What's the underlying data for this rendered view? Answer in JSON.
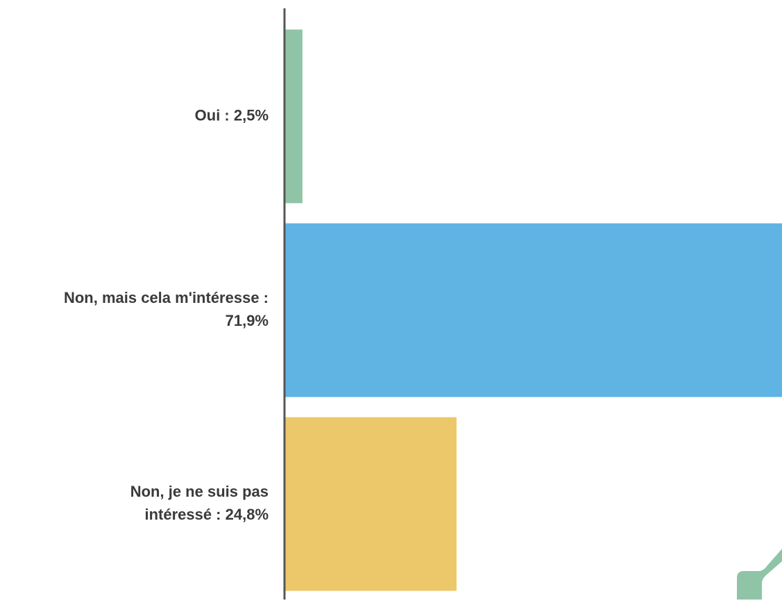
{
  "chart_data": {
    "type": "bar",
    "orientation": "horizontal",
    "categories": [
      "Oui : 2,5%",
      "Non, mais cela m'intéresse : 71,9%",
      "Non, je ne suis pas intéressé : 24,8%"
    ],
    "label_lines": [
      [
        "Oui : 2,5%"
      ],
      [
        "Non, mais cela m'intéresse :",
        "71,9%"
      ],
      [
        "Non, je ne suis pas",
        "intéressé : 24,8%"
      ]
    ],
    "values": [
      2.5,
      71.9,
      24.8
    ],
    "colors": [
      "#8fc5a6",
      "#5fb4e3",
      "#edc86a"
    ],
    "axis_color": "#555555",
    "xlim": [
      0,
      71.9
    ],
    "grid": false,
    "legend": "none",
    "title": "",
    "xlabel": "",
    "ylabel": ""
  }
}
